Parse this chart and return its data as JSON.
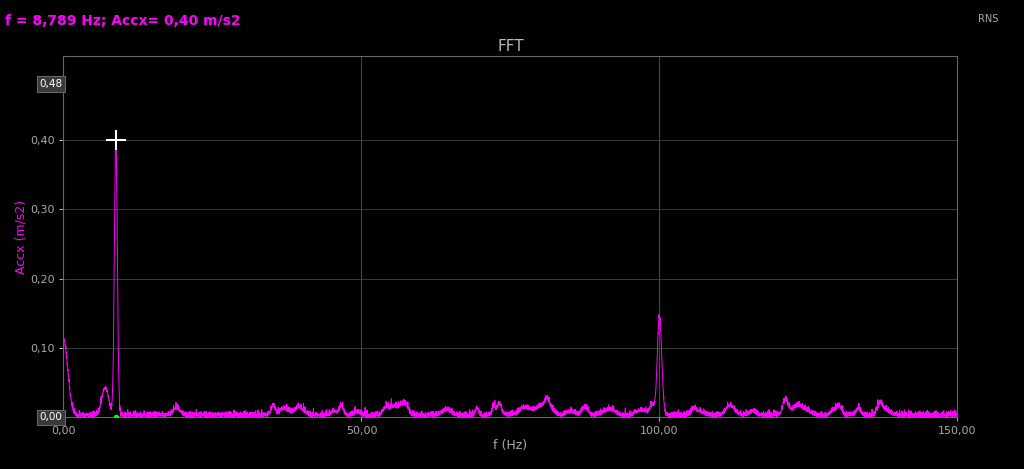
{
  "title": "FFT",
  "xlabel": "f (Hz)",
  "ylabel": "Accx (m/s2)",
  "annotation": "f = 8,789 Hz; Accx= 0,40 m/s2",
  "background_color": "#000000",
  "plot_bg_color": "#000000",
  "line_color": "#FF00FF",
  "grid_color": "#444444",
  "text_color_magenta": "#FF00FF",
  "tick_label_color": "#AAAAAA",
  "title_color": "#BBBBBB",
  "xlim": [
    0,
    150
  ],
  "ylim": [
    0.0,
    0.52
  ],
  "xticks": [
    0.0,
    50.0,
    100.0,
    150.0
  ],
  "yticks": [
    0.1,
    0.2,
    0.3,
    0.4
  ],
  "peak1_freq": 8.789,
  "peak1_amp": 0.4,
  "peak2_freq": 100.0,
  "peak2_amp": 0.13,
  "noise_level": 0.004,
  "vlines": [
    50.0,
    100.0
  ],
  "hlines": [
    0.1,
    0.2,
    0.3,
    0.4
  ]
}
